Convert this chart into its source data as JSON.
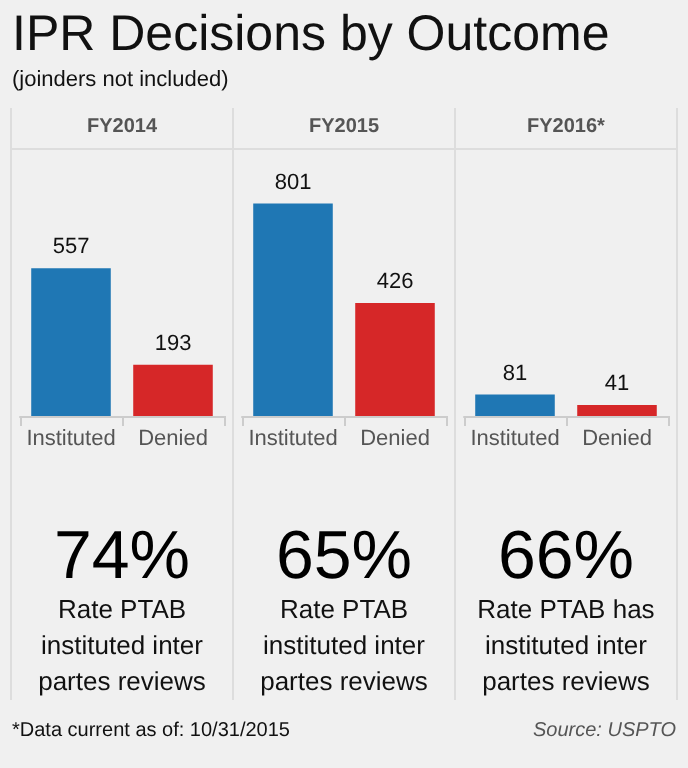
{
  "chart_data": [
    {
      "type": "other",
      "title": "IPR Decisions by Outcome",
      "subtitle": "(joinders not included)"
    },
    {
      "type": "bar",
      "title": "FY2014",
      "categories": [
        "Instituted",
        "Denied"
      ],
      "values": [
        557,
        193
      ],
      "colors": [
        "#1f77b4",
        "#d62728"
      ],
      "data_labels": true,
      "annotations": [
        "74%",
        "Rate PTAB instituted inter partes reviews"
      ]
    },
    {
      "type": "bar",
      "title": "FY2015",
      "categories": [
        "Instituted",
        "Denied"
      ],
      "values": [
        801,
        426
      ],
      "colors": [
        "#1f77b4",
        "#d62728"
      ],
      "data_labels": true,
      "annotations": [
        "65%",
        "Rate PTAB instituted inter partes reviews"
      ]
    },
    {
      "type": "bar",
      "title": "FY2016*",
      "categories": [
        "Instituted",
        "Denied"
      ],
      "values": [
        81,
        41
      ],
      "colors": [
        "#1f77b4",
        "#d62728"
      ],
      "data_labels": true,
      "annotations": [
        "66%",
        "Rate PTAB has instituted inter partes reviews"
      ]
    },
    {
      "type": "other",
      "annotations": [
        "*Data current as of: 10/31/2015",
        "Source: USPTO"
      ]
    }
  ]
}
